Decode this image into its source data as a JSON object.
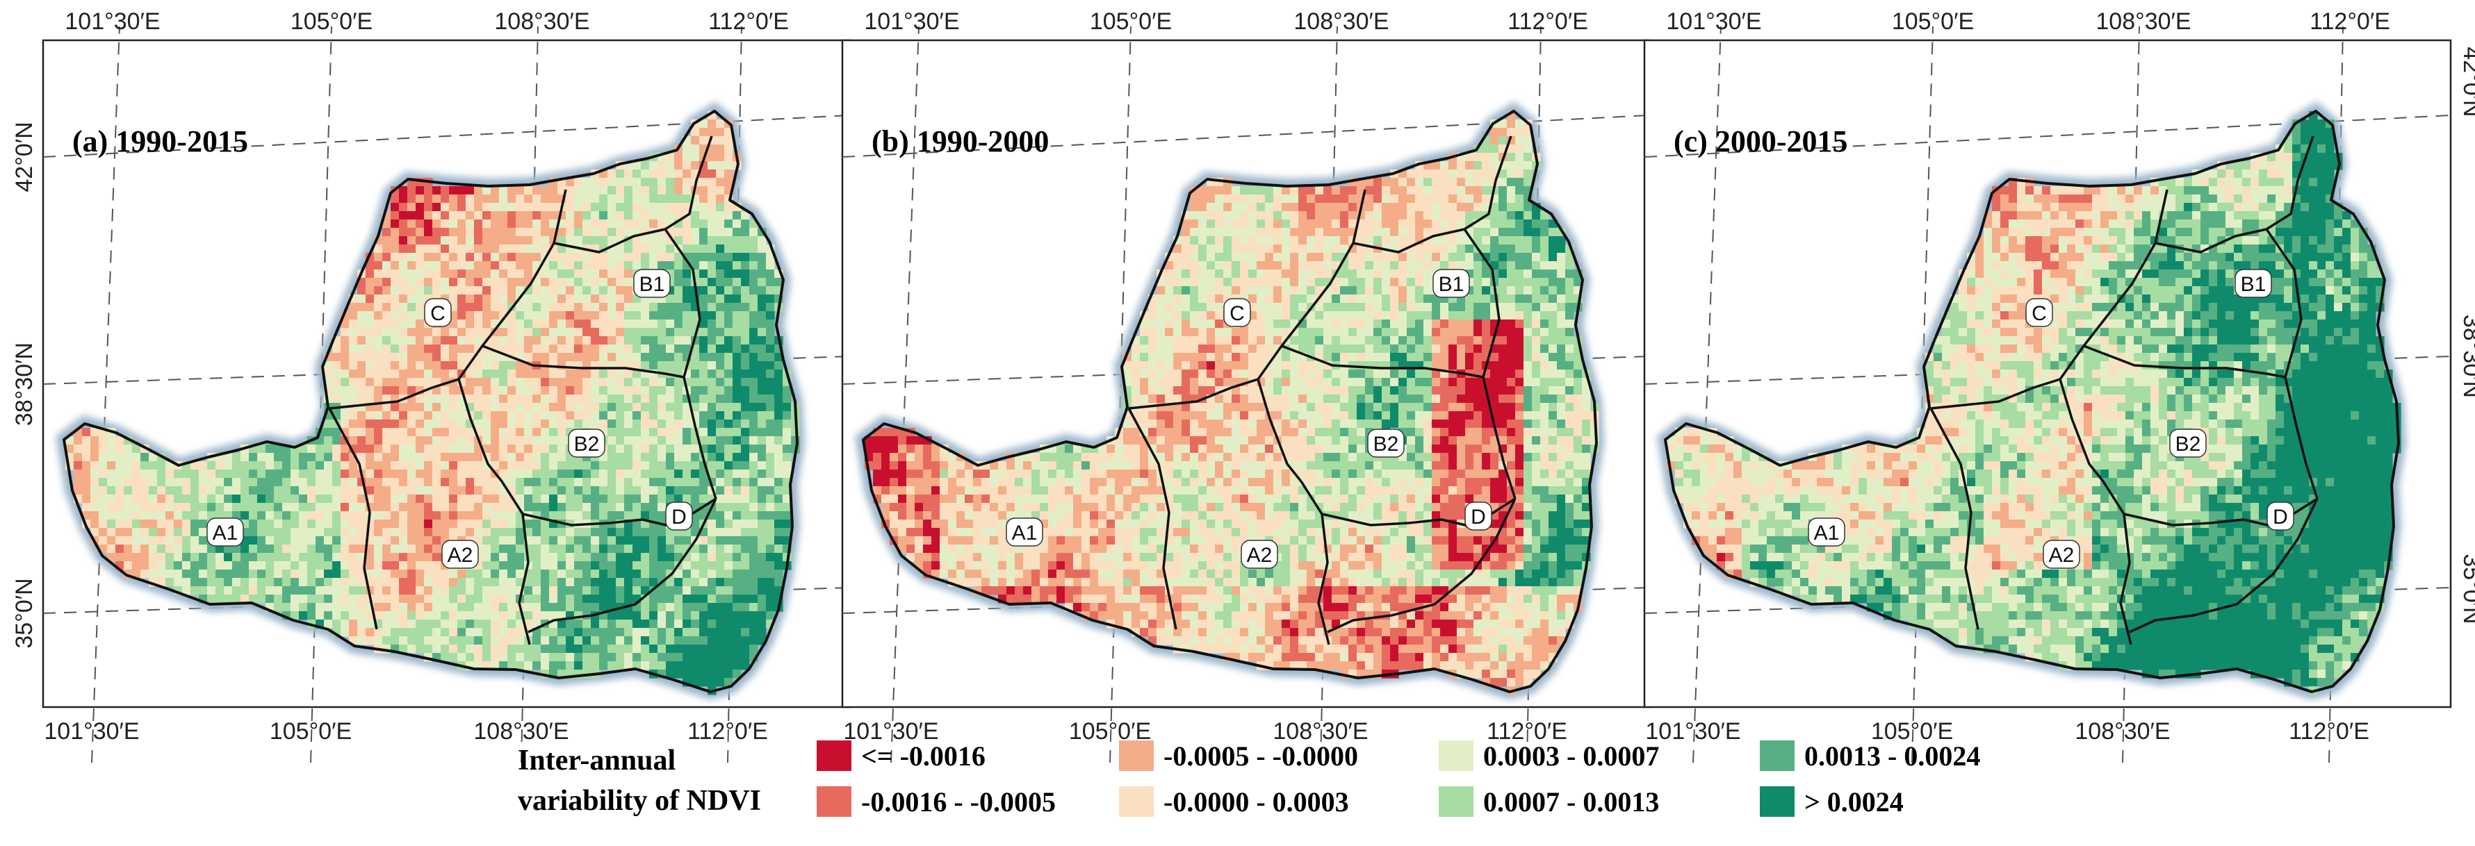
{
  "lon_labels": [
    "101°30′E",
    "105°0′E",
    "108°30′E",
    "112°0′E"
  ],
  "lat_labels": [
    "42°0′N",
    "38°30′N",
    "35°0′N"
  ],
  "panels": [
    {
      "id": "a",
      "title": "(a) 1990-2015",
      "scheme": "mixed"
    },
    {
      "id": "b",
      "title": "(b) 1990-2000",
      "scheme": "extreme"
    },
    {
      "id": "c",
      "title": "(c) 2000-2015",
      "scheme": "greening"
    }
  ],
  "regions": [
    {
      "id": "A1",
      "label": "A1"
    },
    {
      "id": "A2",
      "label": "A2"
    },
    {
      "id": "B1",
      "label": "B1"
    },
    {
      "id": "B2",
      "label": "B2"
    },
    {
      "id": "C",
      "label": "C"
    },
    {
      "id": "D",
      "label": "D"
    }
  ],
  "legend": {
    "title_line1": "Inter-annual",
    "title_line2": "variability of NDVI",
    "classes": [
      {
        "label": "<= -0.0016",
        "color": "#c8102e"
      },
      {
        "label": "-0.0016 - -0.0005",
        "color": "#e76a5f"
      },
      {
        "label": "-0.0005 - -0.0000",
        "color": "#f4ad88"
      },
      {
        "label": "-0.0000 - 0.0003",
        "color": "#fae0c0"
      },
      {
        "label": "0.0003 - 0.0007",
        "color": "#e2efc6"
      },
      {
        "label": "0.0007 - 0.0013",
        "color": "#a7dca3"
      },
      {
        "label": "0.0013 - 0.0024",
        "color": "#57b083"
      },
      {
        "label": "> 0.0024",
        "color": "#0f8b6b"
      }
    ]
  },
  "colors": {
    "boundary": "#111111",
    "halo": "#9fb8cc",
    "grid": "#555555"
  }
}
